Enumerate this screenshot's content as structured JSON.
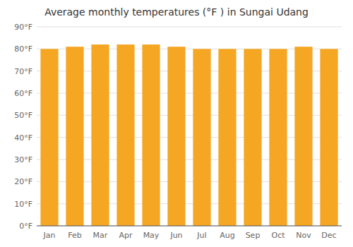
{
  "chart_data": {
    "type": "bar",
    "title": "Average monthly temperatures (°F ) in Sungai Udang",
    "categories": [
      "Jan",
      "Feb",
      "Mar",
      "Apr",
      "May",
      "Jun",
      "Jul",
      "Aug",
      "Sep",
      "Oct",
      "Nov",
      "Dec"
    ],
    "values": [
      80,
      81,
      82,
      82,
      82,
      81,
      80,
      80,
      80,
      80,
      81,
      80
    ],
    "color": "#F5A623",
    "ylim": [
      0,
      90
    ],
    "yticks": [
      {
        "value": 0,
        "label": "0°F"
      },
      {
        "value": 10,
        "label": "10°F"
      },
      {
        "value": 20,
        "label": "20°F"
      },
      {
        "value": 30,
        "label": "30°F"
      },
      {
        "value": 40,
        "label": "40°F"
      },
      {
        "value": 50,
        "label": "50°F"
      },
      {
        "value": 60,
        "label": "60°F"
      },
      {
        "value": 70,
        "label": "70°F"
      },
      {
        "value": 80,
        "label": "80°F"
      },
      {
        "value": 90,
        "label": "90°F"
      }
    ],
    "grid": true
  }
}
